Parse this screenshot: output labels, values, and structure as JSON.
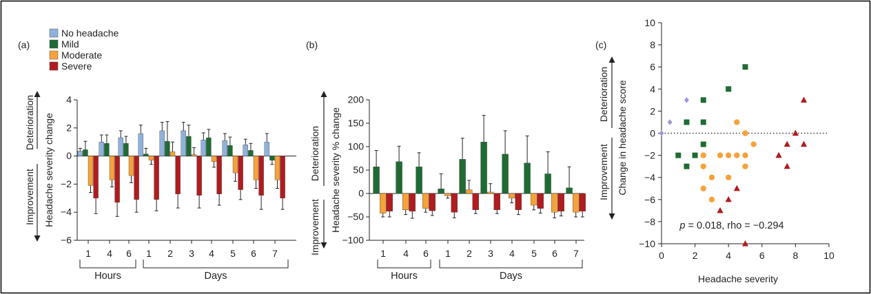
{
  "colors": {
    "no_headache": "#8fb2dc",
    "mild": "#1f6b34",
    "moderate": "#f5a23a",
    "severe": "#b01c1f",
    "migraine_point": "#9c94d8",
    "axis": "#222222"
  },
  "legend": {
    "items": [
      {
        "key": "no_headache",
        "label": "No headache"
      },
      {
        "key": "mild",
        "label": "Mild"
      },
      {
        "key": "moderate",
        "label": "Moderate"
      },
      {
        "key": "severe",
        "label": "Severe"
      }
    ]
  },
  "chart_data": [
    {
      "panel": "(a)",
      "type": "bar",
      "ylabel": "Headache severity change",
      "side_labels": {
        "up": "Deterioration",
        "down": "Improvement"
      },
      "ylim": [
        -6,
        4
      ],
      "yticks": [
        4,
        2,
        0,
        -2,
        -4,
        -6
      ],
      "ytick_labels": [
        "4",
        "2",
        "0",
        "−2",
        "−4",
        "−6"
      ],
      "categories": [
        "1",
        "4",
        "6",
        "1",
        "2",
        "3",
        "4",
        "5",
        "6",
        "7"
      ],
      "groups": [
        {
          "label": "Hours",
          "from": 0,
          "to": 2
        },
        {
          "label": "Days",
          "from": 3,
          "to": 9
        }
      ],
      "series": [
        {
          "name": "No headache",
          "key": "no_headache",
          "values": [
            0.35,
            1.0,
            1.3,
            1.6,
            1.8,
            1.8,
            1.15,
            1.1,
            0.8,
            1.0
          ],
          "errors": [
            0.2,
            0.5,
            0.5,
            0.6,
            0.6,
            0.6,
            0.5,
            0.5,
            0.4,
            0.6
          ]
        },
        {
          "name": "Mild",
          "key": "mild",
          "values": [
            0.45,
            0.9,
            0.9,
            0.15,
            1.05,
            1.4,
            1.3,
            0.75,
            0.4,
            -0.3
          ],
          "errors": [
            0.6,
            0.6,
            0.5,
            0.4,
            1.4,
            0.8,
            0.6,
            0.6,
            0.5,
            0.3
          ]
        },
        {
          "name": "Moderate",
          "key": "moderate",
          "values": [
            -2.1,
            -1.7,
            -1.4,
            -0.3,
            0.3,
            0.1,
            -0.4,
            -1.2,
            -1.7,
            -1.7
          ],
          "errors": [
            0.5,
            0.5,
            0.5,
            0.3,
            0.7,
            0.5,
            0.4,
            0.6,
            0.6,
            0.6
          ]
        },
        {
          "name": "Severe",
          "key": "severe",
          "values": [
            -3.0,
            -3.3,
            -3.1,
            -3.1,
            -2.7,
            -2.8,
            -2.7,
            -2.4,
            -2.8,
            -3.0
          ],
          "errors": [
            1.1,
            1.0,
            0.9,
            0.8,
            1.0,
            0.9,
            0.8,
            0.7,
            1.0,
            0.8
          ]
        }
      ]
    },
    {
      "panel": "(b)",
      "type": "bar",
      "ylabel": "Headache severity % change",
      "side_labels": {
        "up": "Deterioration",
        "down": "Improvement"
      },
      "ylim": [
        -100,
        200
      ],
      "yticks": [
        200,
        150,
        100,
        50,
        0,
        -50,
        -100
      ],
      "ytick_labels": [
        "200",
        "150",
        "100",
        "50",
        "0",
        "−50",
        "−100"
      ],
      "categories": [
        "1",
        "4",
        "6",
        "1",
        "2",
        "3",
        "4",
        "5",
        "6",
        "7"
      ],
      "groups": [
        {
          "label": "Hours",
          "from": 0,
          "to": 2
        },
        {
          "label": "Days",
          "from": 3,
          "to": 9
        }
      ],
      "series": [
        {
          "name": "Mild",
          "key": "mild",
          "values": [
            57,
            68,
            57,
            10,
            73,
            110,
            84,
            65,
            42,
            12
          ],
          "errors": [
            35,
            33,
            30,
            32,
            45,
            57,
            50,
            58,
            47,
            45
          ]
        },
        {
          "name": "Moderate",
          "key": "moderate",
          "values": [
            -42,
            -35,
            -32,
            -5,
            8,
            3,
            -10,
            -25,
            -40,
            -40
          ],
          "errors": [
            8,
            10,
            8,
            5,
            20,
            18,
            10,
            10,
            12,
            10
          ]
        },
        {
          "name": "Severe",
          "key": "severe",
          "values": [
            -38,
            -38,
            -37,
            -40,
            -35,
            -35,
            -35,
            -32,
            -38,
            -38
          ],
          "errors": [
            12,
            15,
            10,
            12,
            8,
            8,
            10,
            10,
            10,
            12
          ]
        }
      ]
    },
    {
      "panel": "(c)",
      "type": "scatter",
      "xlabel": "Headache severity",
      "ylabel": "Change in headache score",
      "side_labels": {
        "up": "Deterioration",
        "down": "Improvement"
      },
      "xlim": [
        0,
        10
      ],
      "ylim": [
        -10,
        10
      ],
      "xticks": [
        0,
        2,
        4,
        6,
        8,
        10
      ],
      "xtick_labels": [
        "0",
        "2",
        "4",
        "6",
        "8",
        "10"
      ],
      "yticks": [
        10,
        8,
        6,
        4,
        2,
        0,
        -2,
        -4,
        -6,
        -8,
        -10
      ],
      "ytick_labels": [
        "10",
        "8",
        "6",
        "4",
        "2",
        "0",
        "−2",
        "−4",
        "−6",
        "−8",
        "−10"
      ],
      "annotation": {
        "p_label": "p",
        "rest": " = 0.018, rho = −0.294"
      },
      "series": [
        {
          "key": "migraine_point",
          "marker": "diamond",
          "points": [
            [
              0,
              0
            ],
            [
              0.5,
              1
            ],
            [
              1.5,
              3
            ]
          ]
        },
        {
          "key": "mild",
          "marker": "square",
          "points": [
            [
              1,
              -2
            ],
            [
              1.5,
              1
            ],
            [
              1.5,
              -3
            ],
            [
              2,
              -2
            ],
            [
              2.5,
              3
            ],
            [
              2.5,
              1
            ],
            [
              2.5,
              -1
            ],
            [
              4,
              4
            ],
            [
              5,
              6
            ]
          ]
        },
        {
          "key": "moderate",
          "marker": "circle",
          "points": [
            [
              2.5,
              -2
            ],
            [
              2.5,
              -3
            ],
            [
              2.5,
              -5
            ],
            [
              3,
              -4
            ],
            [
              3,
              -6
            ],
            [
              3.5,
              -2
            ],
            [
              4,
              -2
            ],
            [
              4,
              -4
            ],
            [
              4.5,
              1
            ],
            [
              4.5,
              -2
            ],
            [
              5,
              0
            ],
            [
              5,
              -2
            ],
            [
              5,
              -3
            ],
            [
              5.5,
              -1
            ]
          ]
        },
        {
          "key": "severe",
          "marker": "triangle",
          "points": [
            [
              3.5,
              -7
            ],
            [
              4,
              -6
            ],
            [
              4.5,
              -5
            ],
            [
              5,
              -10
            ],
            [
              7,
              -2
            ],
            [
              7.5,
              -1
            ],
            [
              7.5,
              -3
            ],
            [
              8,
              0
            ],
            [
              8.5,
              3
            ],
            [
              8.5,
              -1
            ]
          ]
        }
      ]
    }
  ]
}
